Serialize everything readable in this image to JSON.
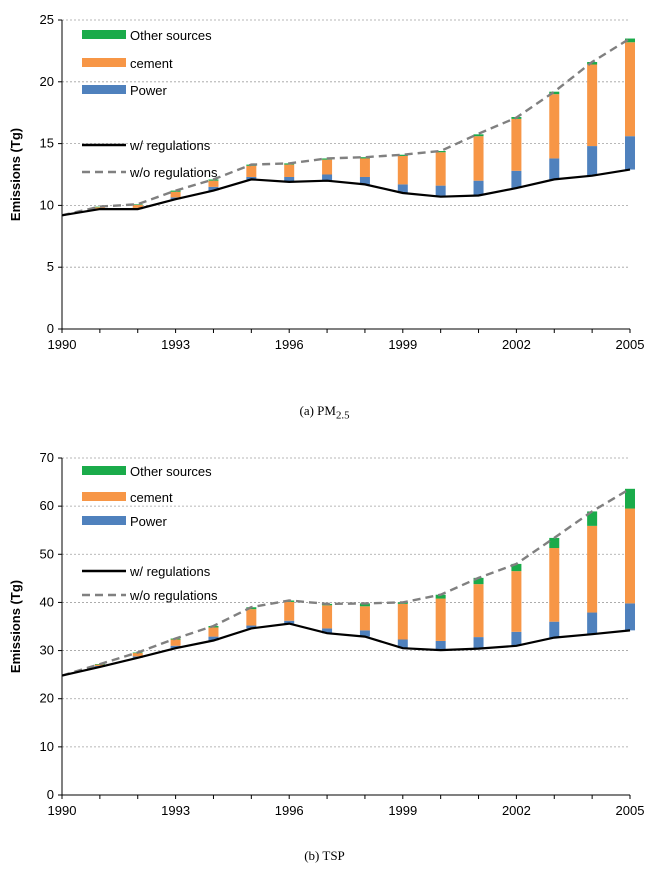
{
  "colors": {
    "other": "#1aab4a",
    "cement": "#f79646",
    "power": "#4f81bd",
    "with_reg": "#000000",
    "without_reg": "#808080"
  },
  "captions": {
    "a_prefix": "(a) PM",
    "a_sub": "2.5",
    "b": "(b) TSP"
  },
  "chart_data": [
    {
      "type": "bar",
      "stacked": true,
      "ylabel": "Emissions (Tg)",
      "ylim": [
        0,
        25
      ],
      "yticks": [
        "0",
        "5",
        "10",
        "15",
        "20",
        "25"
      ],
      "x": [
        1990,
        1991,
        1992,
        1993,
        1994,
        1995,
        1996,
        1997,
        1998,
        1999,
        2000,
        2001,
        2002,
        2003,
        2004,
        2005
      ],
      "xtick_labels": [
        "1990",
        "1993",
        "1996",
        "1999",
        "2002",
        "2005"
      ],
      "grid": true,
      "legend_position": "top-left",
      "legend": [
        "Other sources",
        "cement",
        "Power",
        "w/ regulations",
        "w/o regulations"
      ],
      "series": [
        {
          "name": "w/ regulations",
          "kind": "line",
          "values": [
            9.2,
            9.7,
            9.7,
            10.5,
            11.2,
            12.1,
            11.9,
            12.0,
            11.7,
            11.0,
            10.7,
            10.8,
            11.4,
            12.1,
            12.4,
            12.9
          ]
        },
        {
          "name": "Power",
          "kind": "bar",
          "values": [
            0,
            0.05,
            0.1,
            0.15,
            0.3,
            0.2,
            0.4,
            0.5,
            0.6,
            0.7,
            0.9,
            1.2,
            1.4,
            1.7,
            2.4,
            2.7
          ]
        },
        {
          "name": "cement",
          "kind": "bar",
          "values": [
            0,
            0.1,
            0.25,
            0.45,
            0.5,
            0.9,
            1.0,
            1.2,
            1.5,
            2.3,
            2.7,
            3.6,
            4.2,
            5.2,
            6.6,
            7.6
          ]
        },
        {
          "name": "Other sources",
          "kind": "bar",
          "values": [
            0,
            0.05,
            0.05,
            0.1,
            0.1,
            0.1,
            0.1,
            0.1,
            0.1,
            0.1,
            0.1,
            0.15,
            0.15,
            0.2,
            0.2,
            0.3
          ]
        },
        {
          "name": "w/o regulations",
          "kind": "line",
          "values": [
            9.2,
            9.9,
            10.1,
            11.2,
            12.1,
            13.3,
            13.4,
            13.8,
            13.9,
            14.1,
            14.4,
            15.8,
            17.1,
            19.2,
            21.6,
            23.5
          ]
        }
      ]
    },
    {
      "type": "bar",
      "stacked": true,
      "ylabel": "Emissions (Tg)",
      "ylim": [
        0,
        70
      ],
      "yticks": [
        "0",
        "10",
        "20",
        "30",
        "40",
        "50",
        "60",
        "70"
      ],
      "x": [
        1990,
        1991,
        1992,
        1993,
        1994,
        1995,
        1996,
        1997,
        1998,
        1999,
        2000,
        2001,
        2002,
        2003,
        2004,
        2005
      ],
      "xtick_labels": [
        "1990",
        "1993",
        "1996",
        "1999",
        "2002",
        "2005"
      ],
      "grid": true,
      "legend_position": "top-left",
      "legend": [
        "Other sources",
        "cement",
        "Power",
        "w/ regulations",
        "w/o regulations"
      ],
      "series": [
        {
          "name": "w/ regulations",
          "kind": "line",
          "values": [
            24.8,
            26.6,
            28.5,
            30.5,
            32.1,
            34.6,
            35.6,
            33.6,
            32.9,
            30.5,
            30.1,
            30.4,
            31.0,
            32.7,
            33.4,
            34.2
          ]
        },
        {
          "name": "Power",
          "kind": "bar",
          "values": [
            0,
            0.2,
            0.3,
            0.5,
            0.8,
            0.6,
            0.6,
            1.0,
            1.3,
            1.8,
            1.9,
            2.4,
            2.9,
            3.3,
            4.5,
            5.6
          ]
        },
        {
          "name": "cement",
          "kind": "bar",
          "values": [
            0,
            0.3,
            0.7,
            1.3,
            1.9,
            3.4,
            3.9,
            4.8,
            5.0,
            7.4,
            8.8,
            11.0,
            12.6,
            15.3,
            18.0,
            19.7
          ]
        },
        {
          "name": "Other sources",
          "kind": "bar",
          "values": [
            0,
            0.1,
            0.1,
            0.2,
            0.3,
            0.4,
            0.3,
            0.3,
            0.6,
            0.3,
            0.8,
            1.3,
            1.5,
            2.1,
            3.0,
            4.1
          ]
        },
        {
          "name": "w/o regulations",
          "kind": "line",
          "values": [
            24.8,
            27.2,
            29.6,
            32.5,
            35.1,
            39.0,
            40.4,
            39.7,
            39.8,
            40.0,
            41.6,
            45.1,
            48.0,
            53.4,
            58.9,
            63.6
          ]
        }
      ]
    }
  ]
}
